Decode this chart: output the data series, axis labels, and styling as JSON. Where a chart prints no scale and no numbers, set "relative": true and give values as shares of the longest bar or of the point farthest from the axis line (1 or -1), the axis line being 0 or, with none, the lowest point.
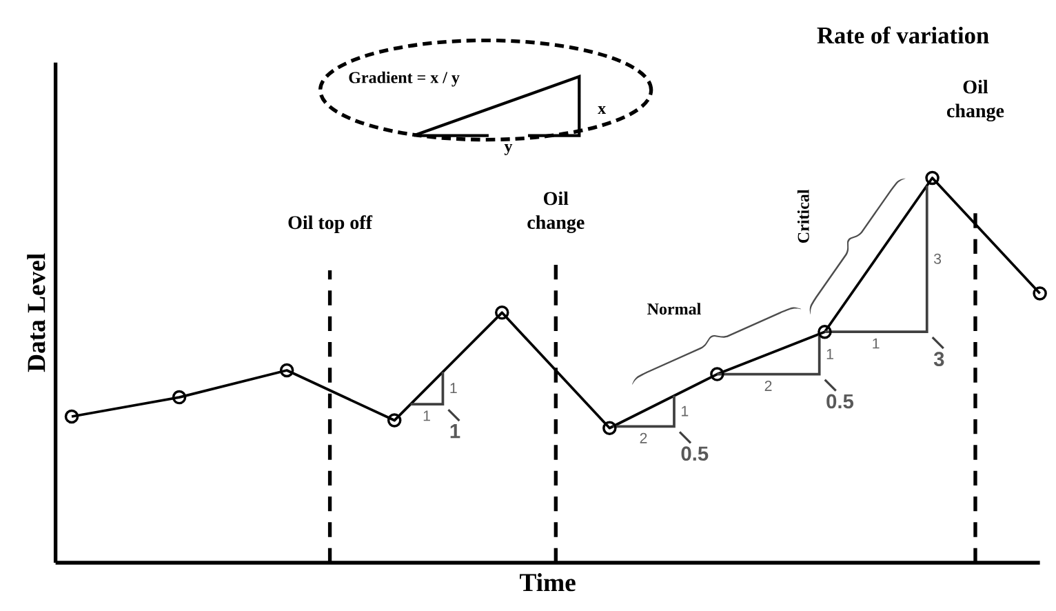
{
  "chart_data": {
    "type": "line",
    "title": "Rate of variation",
    "xlabel": "Time",
    "ylabel": "Data Level",
    "categories": [
      null,
      null,
      null,
      null,
      null,
      null,
      null,
      null,
      null,
      null
    ],
    "values": [
      0.38,
      0.43,
      0.5,
      0.37,
      0.65,
      0.35,
      0.49,
      0.6,
      1,
      0.7
    ],
    "color": "#000000",
    "relative": true,
    "marker": "circle",
    "line_style": "solid",
    "annotations": [
      "Gradient = x / y",
      "x",
      "y",
      "Normal",
      "Critical",
      "1",
      "1",
      "1",
      "1",
      "2",
      "0.5",
      "1",
      "2",
      "0.5",
      "3",
      "1",
      "3",
      "Oil top off",
      "Oil change",
      "Oil change"
    ]
  }
}
